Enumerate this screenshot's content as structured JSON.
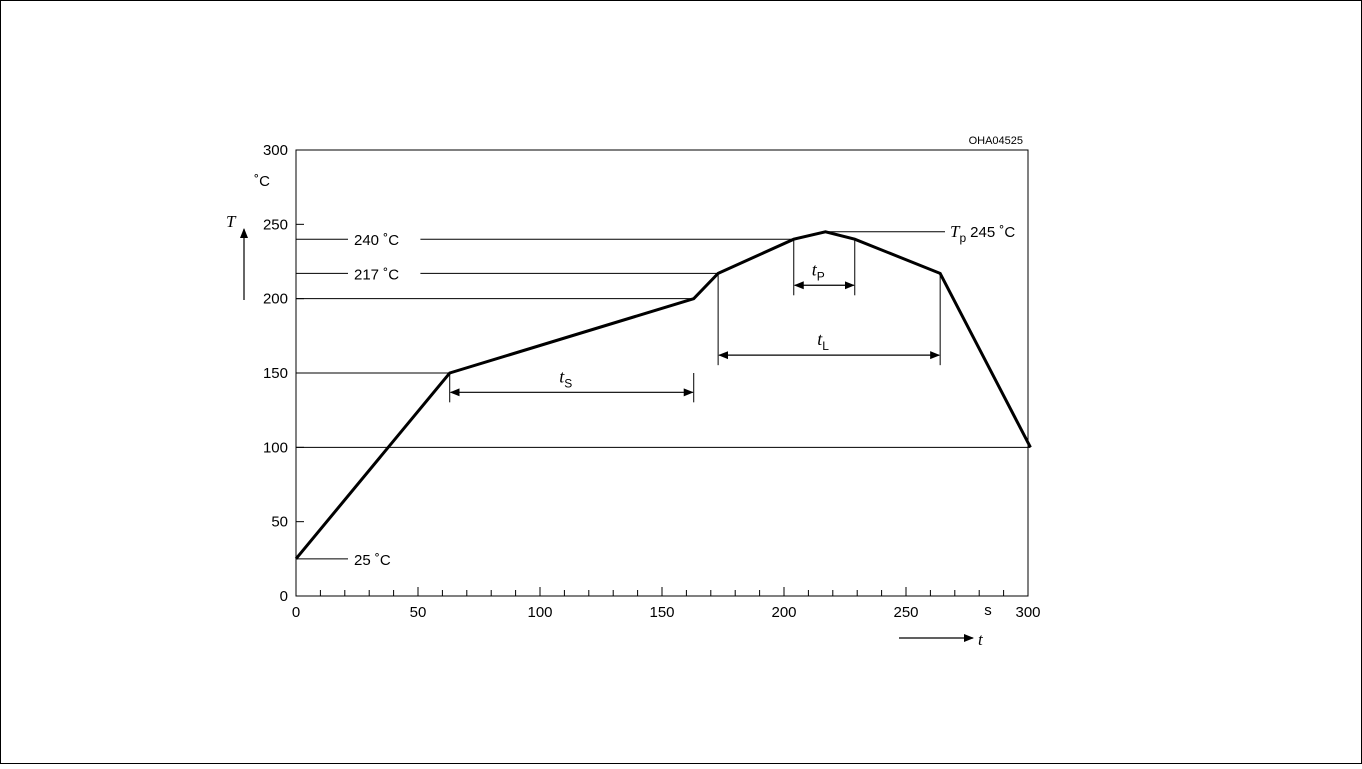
{
  "chart_data": {
    "type": "line",
    "code": "OHA04525",
    "y_axis": {
      "symbol": "T",
      "unit": "˚C",
      "ylim": [
        0,
        300
      ],
      "ticks": [
        0,
        50,
        100,
        150,
        200,
        250,
        300
      ],
      "minor_step": 10
    },
    "x_axis": {
      "symbol": "t",
      "unit": "s",
      "xlim": [
        0,
        300
      ],
      "ticks": [
        0,
        50,
        100,
        150,
        200,
        250,
        300
      ],
      "minor_step": 10
    },
    "grid": false,
    "series": [
      {
        "x": [
          0,
          63,
          163,
          173,
          204,
          217,
          229,
          264,
          301
        ],
        "y": [
          25,
          150,
          200,
          217,
          240,
          245,
          240,
          217,
          100
        ]
      }
    ],
    "reference_lines": [
      {
        "y": 25,
        "label": "25 ˚C"
      },
      {
        "y": 100,
        "label": ""
      },
      {
        "y": 150,
        "label": ""
      },
      {
        "y": 200,
        "label": ""
      },
      {
        "y": 217,
        "label": "217 ˚C"
      },
      {
        "y": 240,
        "label": "240 ˚C"
      },
      {
        "y": 245,
        "label": "245 ˚C",
        "symbol": "T",
        "sub": "p"
      }
    ],
    "intervals": [
      {
        "symbol": "t",
        "sub": "S",
        "x_start": 63,
        "x_end": 163,
        "y": 137,
        "vline_from": 150
      },
      {
        "symbol": "t",
        "sub": "L",
        "x_start": 173,
        "x_end": 264,
        "y": 162,
        "vline_from": 217
      },
      {
        "symbol": "t",
        "sub": "P",
        "x_start": 204,
        "x_end": 229,
        "y": 209,
        "vline_from": 240
      }
    ]
  }
}
